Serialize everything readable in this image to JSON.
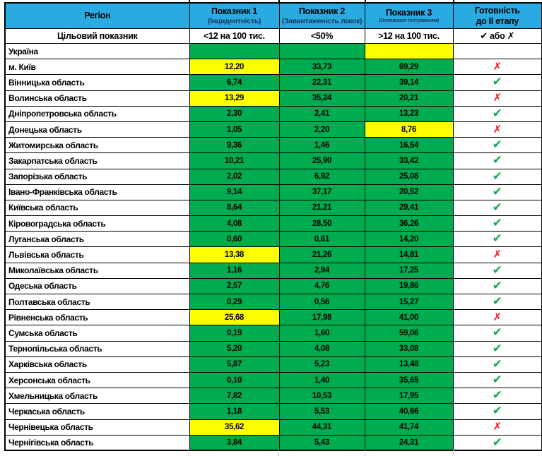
{
  "header": {
    "region": "Регіон",
    "col1_title": "Показник 1",
    "col1_sub": "(Інцидентність)",
    "col2_title": "Показник 2",
    "col2_sub": "(Завантаженість ліжок)",
    "col3_title": "Показник 3",
    "col3_sub": "(Охоплення тестуванням)",
    "ready_line1": "Готовність",
    "ready_line2": "до II етапу"
  },
  "target_row": {
    "label": "Цільовий показник",
    "col1": "<12 на 100 тис.",
    "col2": "<50%",
    "col3": ">12 на 100 тис.",
    "check_symbol": "✔",
    "or_label": "або",
    "cross_symbol": "✗"
  },
  "symbols": {
    "check": "✔",
    "cross": "✗"
  },
  "colors": {
    "header_blue": "#29ABE2",
    "cell_green": "#00AC50",
    "cell_yellow": "#FFFF00",
    "cell_gray": "#BFBFBF",
    "check_green": "#16A94E",
    "cross_red": "#ED1C24"
  },
  "rows": [
    {
      "name": "Україна",
      "v1": "",
      "v1_bg": "green",
      "v2": "",
      "v2_bg": "green",
      "v3": "",
      "v3_bg": "yellow",
      "ready": "",
      "ready_bg": "gray"
    },
    {
      "name": "м. Київ",
      "v1": "12,20",
      "v1_bg": "yellow",
      "v2": "33,73",
      "v2_bg": "green",
      "v3": "69,29",
      "v3_bg": "green",
      "ready": "cross",
      "ready_bg": "white"
    },
    {
      "name": "Вінницька область",
      "v1": "6,74",
      "v1_bg": "green",
      "v2": "22,31",
      "v2_bg": "green",
      "v3": "39,14",
      "v3_bg": "green",
      "ready": "check",
      "ready_bg": "white"
    },
    {
      "name": "Волинська область",
      "v1": "13,29",
      "v1_bg": "yellow",
      "v2": "35,24",
      "v2_bg": "green",
      "v3": "20,21",
      "v3_bg": "green",
      "ready": "cross",
      "ready_bg": "white"
    },
    {
      "name": "Дніпропетровська область",
      "v1": "2,30",
      "v1_bg": "green",
      "v2": "2,41",
      "v2_bg": "green",
      "v3": "13,23",
      "v3_bg": "green",
      "ready": "check",
      "ready_bg": "white"
    },
    {
      "name": "Донецька область",
      "v1": "1,05",
      "v1_bg": "green",
      "v2": "2,20",
      "v2_bg": "green",
      "v3": "8,76",
      "v3_bg": "yellow",
      "ready": "cross",
      "ready_bg": "white"
    },
    {
      "name": "Житомирська область",
      "v1": "9,36",
      "v1_bg": "green",
      "v2": "1,46",
      "v2_bg": "green",
      "v3": "16,54",
      "v3_bg": "green",
      "ready": "check",
      "ready_bg": "white"
    },
    {
      "name": "Закарпатська область",
      "v1": "10,21",
      "v1_bg": "green",
      "v2": "25,90",
      "v2_bg": "green",
      "v3": "33,42",
      "v3_bg": "green",
      "ready": "check",
      "ready_bg": "white"
    },
    {
      "name": "Запорізька область",
      "v1": "2,02",
      "v1_bg": "green",
      "v2": "6,92",
      "v2_bg": "green",
      "v3": "25,08",
      "v3_bg": "green",
      "ready": "check",
      "ready_bg": "white"
    },
    {
      "name": "Івано-Франківська область",
      "v1": "9,14",
      "v1_bg": "green",
      "v2": "37,17",
      "v2_bg": "green",
      "v3": "20,52",
      "v3_bg": "green",
      "ready": "check",
      "ready_bg": "white"
    },
    {
      "name": "Київська область",
      "v1": "8,64",
      "v1_bg": "green",
      "v2": "21,21",
      "v2_bg": "green",
      "v3": "29,41",
      "v3_bg": "green",
      "ready": "check",
      "ready_bg": "white"
    },
    {
      "name": "Кіровоградська область",
      "v1": "4,08",
      "v1_bg": "green",
      "v2": "28,50",
      "v2_bg": "green",
      "v3": "36,26",
      "v3_bg": "green",
      "ready": "check",
      "ready_bg": "white"
    },
    {
      "name": "Луганська область",
      "v1": "0,60",
      "v1_bg": "green",
      "v2": "0,61",
      "v2_bg": "green",
      "v3": "14,20",
      "v3_bg": "green",
      "ready": "check",
      "ready_bg": "white"
    },
    {
      "name": "Львівська область",
      "v1": "13,38",
      "v1_bg": "yellow",
      "v2": "21,26",
      "v2_bg": "green",
      "v3": "14,81",
      "v3_bg": "green",
      "ready": "cross",
      "ready_bg": "white"
    },
    {
      "name": "Миколаївська область",
      "v1": "1,16",
      "v1_bg": "green",
      "v2": "2,94",
      "v2_bg": "green",
      "v3": "17,25",
      "v3_bg": "green",
      "ready": "check",
      "ready_bg": "white"
    },
    {
      "name": "Одеська область",
      "v1": "2,57",
      "v1_bg": "green",
      "v2": "4,76",
      "v2_bg": "green",
      "v3": "19,86",
      "v3_bg": "green",
      "ready": "check",
      "ready_bg": "white"
    },
    {
      "name": "Полтавська область",
      "v1": "0,29",
      "v1_bg": "green",
      "v2": "0,56",
      "v2_bg": "green",
      "v3": "15,27",
      "v3_bg": "green",
      "ready": "check",
      "ready_bg": "white"
    },
    {
      "name": "Рівненська область",
      "v1": "25,68",
      "v1_bg": "yellow",
      "v2": "17,98",
      "v2_bg": "green",
      "v3": "41,00",
      "v3_bg": "green",
      "ready": "cross",
      "ready_bg": "white"
    },
    {
      "name": "Сумська область",
      "v1": "0,19",
      "v1_bg": "green",
      "v2": "1,60",
      "v2_bg": "green",
      "v3": "59,06",
      "v3_bg": "green",
      "ready": "check",
      "ready_bg": "white"
    },
    {
      "name": "Тернопільська область",
      "v1": "5,20",
      "v1_bg": "green",
      "v2": "4,08",
      "v2_bg": "green",
      "v3": "33,08",
      "v3_bg": "green",
      "ready": "check",
      "ready_bg": "white"
    },
    {
      "name": "Харківська область",
      "v1": "5,87",
      "v1_bg": "green",
      "v2": "5,23",
      "v2_bg": "green",
      "v3": "13,48",
      "v3_bg": "green",
      "ready": "check",
      "ready_bg": "white"
    },
    {
      "name": "Херсонська область",
      "v1": "0,10",
      "v1_bg": "green",
      "v2": "1,40",
      "v2_bg": "green",
      "v3": "35,65",
      "v3_bg": "green",
      "ready": "check",
      "ready_bg": "white"
    },
    {
      "name": "Хмельницька область",
      "v1": "7,82",
      "v1_bg": "green",
      "v2": "10,53",
      "v2_bg": "green",
      "v3": "17,95",
      "v3_bg": "green",
      "ready": "check",
      "ready_bg": "white"
    },
    {
      "name": "Черкаська область",
      "v1": "1,18",
      "v1_bg": "green",
      "v2": "5,53",
      "v2_bg": "green",
      "v3": "40,66",
      "v3_bg": "green",
      "ready": "check",
      "ready_bg": "white"
    },
    {
      "name": "Чернівецька область",
      "v1": "35,62",
      "v1_bg": "yellow",
      "v2": "44,31",
      "v2_bg": "green",
      "v3": "41,74",
      "v3_bg": "green",
      "ready": "cross",
      "ready_bg": "white"
    },
    {
      "name": "Чернігівська область",
      "v1": "3,84",
      "v1_bg": "green",
      "v2": "5,43",
      "v2_bg": "green",
      "v3": "24,31",
      "v3_bg": "green",
      "ready": "check",
      "ready_bg": "white"
    }
  ]
}
